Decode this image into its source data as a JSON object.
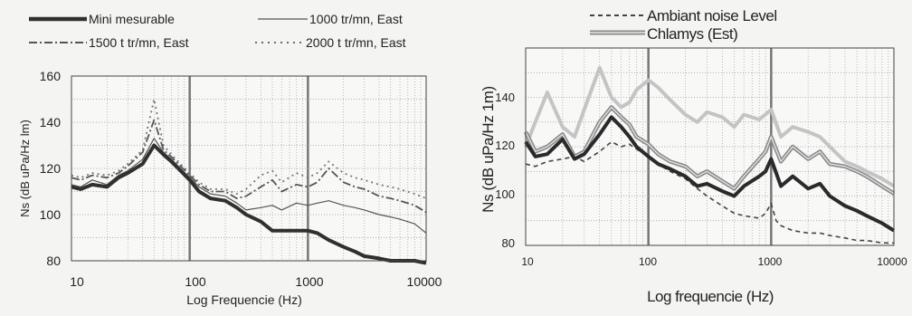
{
  "chart_data": [
    {
      "type": "line",
      "xlabel": "Log Frequencie (Hz)",
      "ylabel": "Ns (dB uPa/Hz lm)",
      "x_scale": "log",
      "xlim": [
        10,
        10000
      ],
      "ylim": [
        80,
        160
      ],
      "xticks": [
        "10",
        "100",
        "1000",
        "10000"
      ],
      "yticks": [
        "80",
        "100",
        "120",
        "140",
        "160"
      ],
      "grid": true,
      "legend_position": "top",
      "series": [
        {
          "name": "Mini mesurable",
          "style": "thick-solid",
          "color": "#303030",
          "points": [
            [
              10,
              112
            ],
            [
              12,
              111
            ],
            [
              15,
              113
            ],
            [
              20,
              112
            ],
            [
              25,
              116
            ],
            [
              30,
              118
            ],
            [
              40,
              122
            ],
            [
              50,
              130
            ],
            [
              60,
              126
            ],
            [
              70,
              123
            ],
            [
              80,
              120
            ],
            [
              100,
              115
            ],
            [
              120,
              110
            ],
            [
              150,
              107
            ],
            [
              200,
              106
            ],
            [
              250,
              103
            ],
            [
              300,
              100
            ],
            [
              400,
              97
            ],
            [
              500,
              93
            ],
            [
              600,
              93
            ],
            [
              800,
              93
            ],
            [
              1000,
              93
            ],
            [
              1200,
              92
            ],
            [
              1500,
              89
            ],
            [
              2000,
              86
            ],
            [
              2500,
              84
            ],
            [
              3000,
              82
            ],
            [
              4000,
              81
            ],
            [
              5000,
              80
            ],
            [
              6000,
              80
            ],
            [
              8000,
              80
            ],
            [
              10000,
              79
            ]
          ]
        },
        {
          "name": "1000 tr/mn, East",
          "style": "thin-solid",
          "color": "#555555",
          "points": [
            [
              10,
              113
            ],
            [
              12,
              112
            ],
            [
              15,
              115
            ],
            [
              20,
              113
            ],
            [
              25,
              117
            ],
            [
              30,
              119
            ],
            [
              40,
              124
            ],
            [
              50,
              133
            ],
            [
              60,
              127
            ],
            [
              70,
              124
            ],
            [
              80,
              121
            ],
            [
              100,
              116
            ],
            [
              120,
              112
            ],
            [
              150,
              109
            ],
            [
              200,
              108
            ],
            [
              250,
              105
            ],
            [
              300,
              102
            ],
            [
              400,
              103
            ],
            [
              500,
              104
            ],
            [
              600,
              102
            ],
            [
              800,
              105
            ],
            [
              1000,
              104
            ],
            [
              1200,
              105
            ],
            [
              1500,
              106
            ],
            [
              2000,
              104
            ],
            [
              2500,
              103
            ],
            [
              3000,
              102
            ],
            [
              4000,
              100
            ],
            [
              5000,
              99
            ],
            [
              6000,
              98
            ],
            [
              8000,
              96
            ],
            [
              10000,
              92
            ]
          ]
        },
        {
          "name": "1500 t tr/mn, East",
          "style": "dash-dot",
          "color": "#555555",
          "points": [
            [
              10,
              116
            ],
            [
              12,
              115
            ],
            [
              15,
              117
            ],
            [
              20,
              116
            ],
            [
              25,
              118
            ],
            [
              30,
              121
            ],
            [
              40,
              127
            ],
            [
              50,
              141
            ],
            [
              60,
              128
            ],
            [
              70,
              125
            ],
            [
              80,
              122
            ],
            [
              100,
              117
            ],
            [
              120,
              113
            ],
            [
              150,
              110
            ],
            [
              200,
              110
            ],
            [
              250,
              107
            ],
            [
              300,
              108
            ],
            [
              400,
              112
            ],
            [
              500,
              115
            ],
            [
              600,
              110
            ],
            [
              800,
              113
            ],
            [
              1000,
              112
            ],
            [
              1200,
              114
            ],
            [
              1500,
              120
            ],
            [
              2000,
              114
            ],
            [
              2500,
              112
            ],
            [
              3000,
              111
            ],
            [
              4000,
              108
            ],
            [
              5000,
              107
            ],
            [
              6000,
              106
            ],
            [
              8000,
              104
            ],
            [
              10000,
              101
            ]
          ]
        },
        {
          "name": "2000 t tr/mn, East",
          "style": "dotted",
          "color": "#777777",
          "points": [
            [
              10,
              117
            ],
            [
              12,
              116
            ],
            [
              15,
              118
            ],
            [
              20,
              117
            ],
            [
              25,
              119
            ],
            [
              30,
              122
            ],
            [
              40,
              128
            ],
            [
              50,
              150
            ],
            [
              60,
              130
            ],
            [
              70,
              126
            ],
            [
              80,
              123
            ],
            [
              100,
              118
            ],
            [
              120,
              114
            ],
            [
              150,
              111
            ],
            [
              200,
              111
            ],
            [
              250,
              109
            ],
            [
              300,
              111
            ],
            [
              400,
              117
            ],
            [
              500,
              119
            ],
            [
              600,
              114
            ],
            [
              800,
              118
            ],
            [
              1000,
              116
            ],
            [
              1200,
              118
            ],
            [
              1500,
              123
            ],
            [
              2000,
              118
            ],
            [
              2500,
              116
            ],
            [
              3000,
              115
            ],
            [
              4000,
              113
            ],
            [
              5000,
              112
            ],
            [
              6000,
              111
            ],
            [
              8000,
              109
            ],
            [
              10000,
              107
            ]
          ]
        }
      ]
    },
    {
      "type": "line",
      "xlabel": "Log frequencie (Hz)",
      "ylabel": "Ns (dB uPa/Hz 1m)",
      "x_scale": "log",
      "xlim": [
        10,
        10000
      ],
      "ylim": [
        80,
        160
      ],
      "xticks": [
        "10",
        "100",
        "1000",
        "10000"
      ],
      "yticks": [
        "80",
        "100",
        "120",
        "140"
      ],
      "grid": true,
      "legend_position": "top",
      "series": [
        {
          "name": "Ambiant noise Level",
          "style": "dashed",
          "color": "#444444",
          "points": [
            [
              10,
              113
            ],
            [
              12,
              112
            ],
            [
              15,
              114
            ],
            [
              20,
              115
            ],
            [
              25,
              116
            ],
            [
              30,
              114
            ],
            [
              40,
              118
            ],
            [
              50,
              122
            ],
            [
              60,
              120
            ],
            [
              70,
              121
            ],
            [
              80,
              119
            ],
            [
              100,
              116
            ],
            [
              120,
              113
            ],
            [
              150,
              110
            ],
            [
              200,
              107
            ],
            [
              250,
              103
            ],
            [
              300,
              100
            ],
            [
              400,
              96
            ],
            [
              500,
              93
            ],
            [
              600,
              92
            ],
            [
              800,
              91
            ],
            [
              900,
              93
            ],
            [
              1000,
              97
            ],
            [
              1100,
              90
            ],
            [
              1200,
              88
            ],
            [
              1500,
              86
            ],
            [
              2000,
              85
            ],
            [
              2500,
              85
            ],
            [
              3000,
              84
            ],
            [
              4000,
              83
            ],
            [
              5000,
              82
            ],
            [
              6000,
              82
            ],
            [
              8000,
              81
            ],
            [
              10000,
              81
            ]
          ]
        },
        {
          "name": "Chlamys (Est)",
          "style": "thick-double",
          "color": "#8a8a8a",
          "points": [
            [
              10,
              126
            ],
            [
              12,
              118
            ],
            [
              15,
              120
            ],
            [
              20,
              125
            ],
            [
              25,
              116
            ],
            [
              30,
              118
            ],
            [
              40,
              130
            ],
            [
              50,
              136
            ],
            [
              60,
              132
            ],
            [
              70,
              129
            ],
            [
              80,
              124
            ],
            [
              100,
              121
            ],
            [
              120,
              117
            ],
            [
              150,
              114
            ],
            [
              200,
              112
            ],
            [
              250,
              108
            ],
            [
              300,
              110
            ],
            [
              400,
              106
            ],
            [
              500,
              103
            ],
            [
              600,
              108
            ],
            [
              800,
              115
            ],
            [
              900,
              118
            ],
            [
              1000,
              124
            ],
            [
              1200,
              114
            ],
            [
              1500,
              120
            ],
            [
              2000,
              115
            ],
            [
              2500,
              118
            ],
            [
              3000,
              113
            ],
            [
              4000,
              112
            ],
            [
              5000,
              110
            ],
            [
              6000,
              108
            ],
            [
              8000,
              104
            ],
            [
              10000,
              101
            ]
          ]
        },
        {
          "name": "",
          "style": "thick-light",
          "color": "#c4c4c4",
          "points": [
            [
              10,
              120
            ],
            [
              12,
              130
            ],
            [
              15,
              142
            ],
            [
              20,
              128
            ],
            [
              25,
              124
            ],
            [
              30,
              135
            ],
            [
              40,
              152
            ],
            [
              50,
              140
            ],
            [
              60,
              136
            ],
            [
              70,
              138
            ],
            [
              80,
              143
            ],
            [
              100,
              147
            ],
            [
              120,
              144
            ],
            [
              150,
              139
            ],
            [
              200,
              133
            ],
            [
              250,
              130
            ],
            [
              300,
              134
            ],
            [
              400,
              132
            ],
            [
              500,
              128
            ],
            [
              600,
              133
            ],
            [
              800,
              131
            ],
            [
              1000,
              135
            ],
            [
              1200,
              124
            ],
            [
              1500,
              128
            ],
            [
              2000,
              126
            ],
            [
              2500,
              124
            ],
            [
              3000,
              120
            ],
            [
              4000,
              114
            ],
            [
              5000,
              112
            ],
            [
              6000,
              110
            ],
            [
              8000,
              107
            ],
            [
              10000,
              104
            ]
          ]
        },
        {
          "name": "",
          "style": "thick-solid",
          "color": "#2a2a2a",
          "points": [
            [
              10,
              122
            ],
            [
              12,
              116
            ],
            [
              15,
              117
            ],
            [
              20,
              123
            ],
            [
              25,
              115
            ],
            [
              30,
              117
            ],
            [
              40,
              125
            ],
            [
              50,
              132
            ],
            [
              60,
              128
            ],
            [
              70,
              124
            ],
            [
              80,
              120
            ],
            [
              100,
              116
            ],
            [
              120,
              113
            ],
            [
              150,
              111
            ],
            [
              200,
              108
            ],
            [
              250,
              104
            ],
            [
              300,
              105
            ],
            [
              400,
              102
            ],
            [
              500,
              100
            ],
            [
              600,
              104
            ],
            [
              800,
              108
            ],
            [
              900,
              110
            ],
            [
              1000,
              115
            ],
            [
              1200,
              104
            ],
            [
              1500,
              108
            ],
            [
              2000,
              103
            ],
            [
              2500,
              105
            ],
            [
              3000,
              100
            ],
            [
              4000,
              96
            ],
            [
              5000,
              94
            ],
            [
              6000,
              92
            ],
            [
              8000,
              89
            ],
            [
              10000,
              86
            ]
          ]
        }
      ]
    }
  ]
}
